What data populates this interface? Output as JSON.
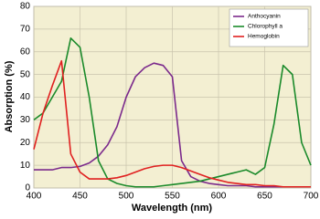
{
  "chart_data": {
    "type": "line",
    "x_label": "Wavelength (nm)",
    "y_label": "Absorption (%)",
    "x": [
      400,
      410,
      420,
      430,
      440,
      450,
      460,
      470,
      480,
      490,
      500,
      510,
      520,
      530,
      540,
      550,
      560,
      570,
      580,
      590,
      600,
      610,
      620,
      630,
      640,
      650,
      660,
      670,
      680,
      690,
      700
    ],
    "series": [
      {
        "name": "Anthocyanin",
        "color": "#7b2a8c",
        "values": [
          8,
          8,
          8,
          9,
          9,
          9.5,
          11,
          14,
          19,
          27,
          40,
          49,
          53,
          55,
          54,
          49,
          12,
          5,
          3,
          2,
          1.5,
          1,
          1,
          1,
          0.5,
          0.5,
          0.5,
          0.5,
          0.5,
          0.5,
          0.5
        ]
      },
      {
        "name": "Chlorophyll a",
        "color": "#1a8a2a",
        "values": [
          30,
          33,
          40,
          47,
          66,
          62,
          40,
          12,
          4,
          2,
          1,
          0.5,
          0.5,
          0.5,
          1,
          1.5,
          2,
          2.5,
          3,
          4,
          5,
          6,
          7,
          8,
          6,
          9,
          28,
          54,
          50,
          20,
          10
        ]
      },
      {
        "name": "Hemoglobin",
        "color": "#e02020",
        "values": [
          17,
          33,
          45,
          56,
          15,
          7,
          4,
          4,
          4,
          4.5,
          5.5,
          7,
          8.5,
          9.5,
          10,
          10,
          9,
          7.5,
          6,
          4.5,
          3.5,
          2.5,
          2,
          1.5,
          1.5,
          1,
          1,
          0.5,
          0.5,
          0.5,
          0.5
        ]
      }
    ],
    "xlim": [
      400,
      700
    ],
    "xticks": [
      400,
      450,
      500,
      550,
      600,
      650,
      700
    ],
    "ylim": [
      0,
      80
    ],
    "yticks": [
      0,
      10,
      20,
      30,
      40,
      50,
      60,
      70,
      80
    ],
    "grid": true,
    "legend": "upper right"
  }
}
